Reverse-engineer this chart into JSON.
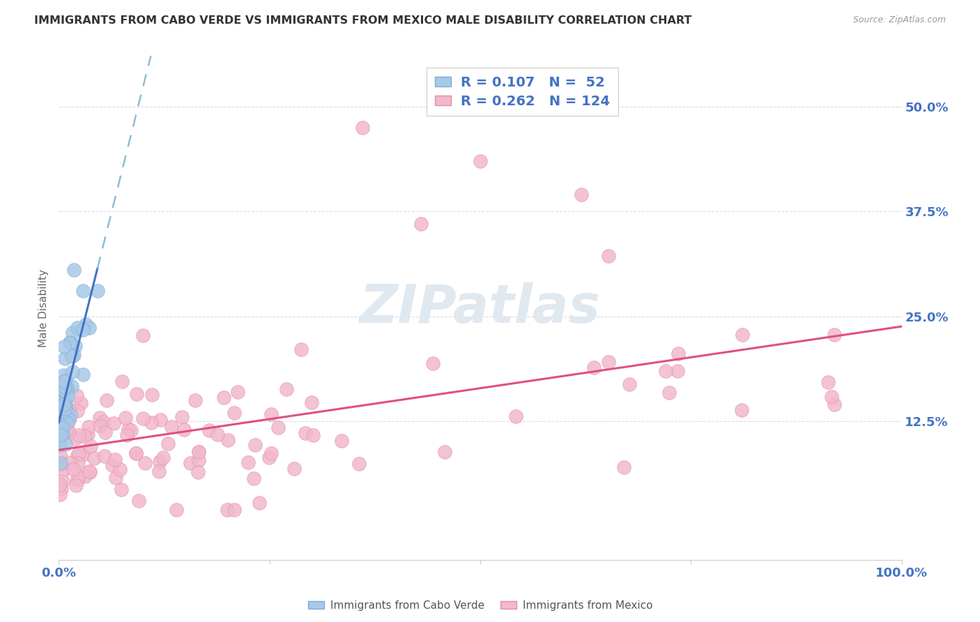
{
  "title": "IMMIGRANTS FROM CABO VERDE VS IMMIGRANTS FROM MEXICO MALE DISABILITY CORRELATION CHART",
  "source": "Source: ZipAtlas.com",
  "ylabel": "Male Disability",
  "watermark": "ZIPatlas",
  "xlim": [
    0,
    1.0
  ],
  "ylim": [
    -0.04,
    0.56
  ],
  "ytick_positions": [
    0.125,
    0.25,
    0.375,
    0.5
  ],
  "ytick_labels": [
    "12.5%",
    "25.0%",
    "37.5%",
    "50.0%"
  ],
  "cabo_verde_color": "#a8c8e8",
  "cabo_verde_edge": "#7aaed4",
  "mexico_color": "#f2b8cc",
  "mexico_edge": "#e090a8",
  "cabo_verde_line_color": "#4472c4",
  "cabo_verde_dash_color": "#90bcd4",
  "mexico_line_color": "#e05080",
  "cabo_verde_R": 0.107,
  "cabo_verde_N": 52,
  "mexico_R": 0.262,
  "mexico_N": 124,
  "legend_label_cabo": "Immigrants from Cabo Verde",
  "legend_label_mexico": "Immigrants from Mexico",
  "background_color": "#ffffff",
  "grid_color": "#d8d8d8",
  "title_color": "#333333",
  "axis_label_color": "#666666",
  "tick_label_color": "#4472c4",
  "title_fontsize": 11.5,
  "source_fontsize": 9,
  "watermark_color": "#e0e8f0",
  "watermark_fontsize": 55,
  "seed": 42
}
